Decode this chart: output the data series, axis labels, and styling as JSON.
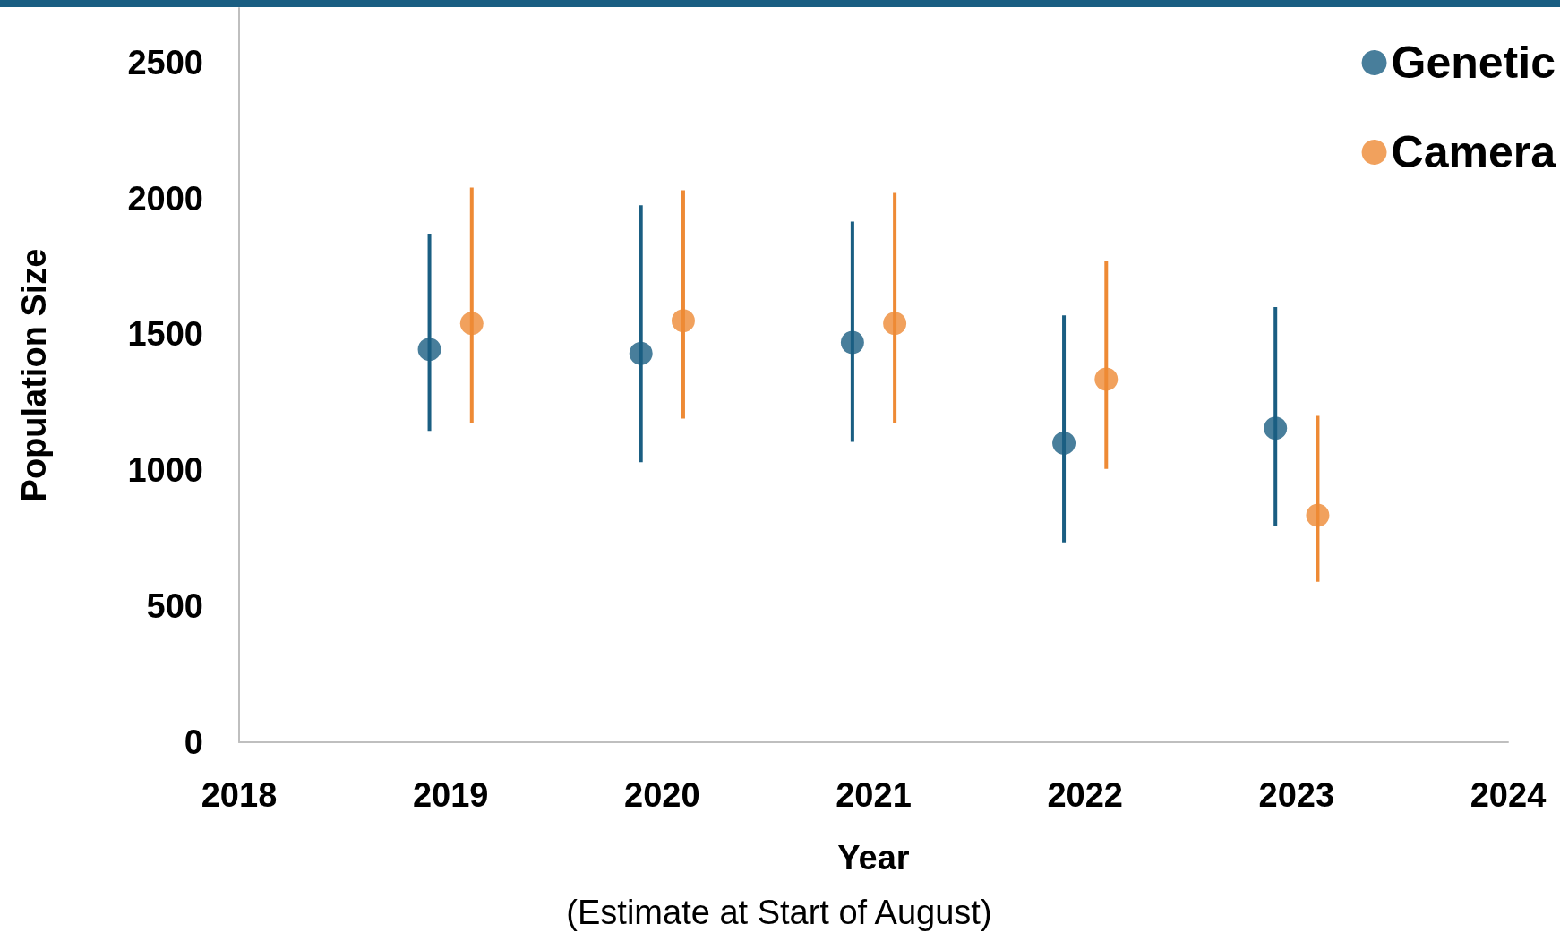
{
  "chart_data": {
    "type": "scatter",
    "xlabel": "Year",
    "ylabel": "Population Size",
    "annotations": [
      "(Estimate at Start of August)"
    ],
    "series": [
      {
        "name": "Genetic",
        "color": "#1a5e82",
        "x": [
          2018.9,
          2019.9,
          2020.9,
          2021.9,
          2022.9
        ],
        "values": [
          1445,
          1430,
          1470,
          1100,
          1155
        ],
        "errors": [
          [
            1145,
            1870
          ],
          [
            1030,
            1975
          ],
          [
            1105,
            1915
          ],
          [
            735,
            1570
          ],
          [
            795,
            1600
          ]
        ]
      },
      {
        "name": "Camera",
        "color": "#ee8a35",
        "x": [
          2019.1,
          2020.1,
          2021.1,
          2022.1,
          2023.1
        ],
        "values": [
          1540,
          1550,
          1540,
          1335,
          835
        ],
        "errors": [
          [
            1175,
            2040
          ],
          [
            1190,
            2030
          ],
          [
            1175,
            2020
          ],
          [
            1005,
            1770
          ],
          [
            590,
            1200
          ]
        ]
      }
    ],
    "xlim": [
      2018,
      2024
    ],
    "xticks": [
      2018,
      2019,
      2020,
      2021,
      2022,
      2023,
      2024
    ],
    "ylim": [
      0,
      2700
    ],
    "yticks": [
      0,
      500,
      1000,
      1500,
      2000,
      2500
    ],
    "grid": false,
    "legend": "top right",
    "marker": "circle"
  }
}
